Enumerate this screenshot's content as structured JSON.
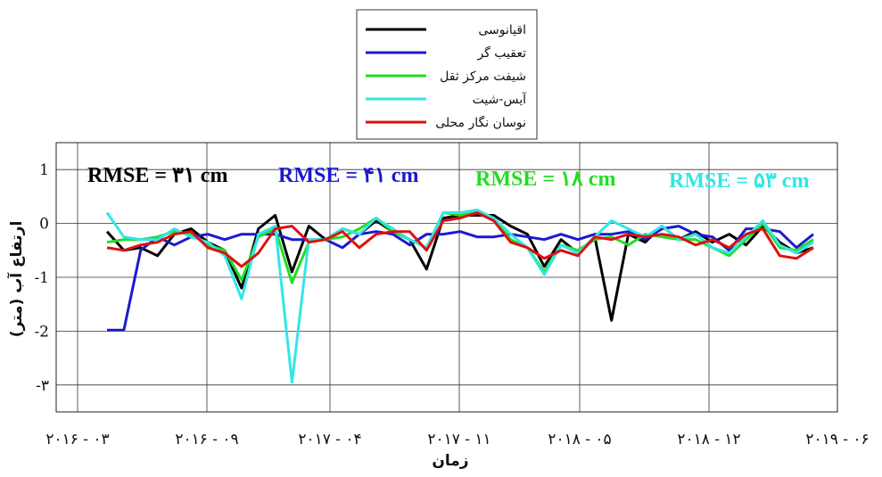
{
  "chart_data": {
    "type": "line",
    "xlabel": "زمان",
    "ylabel": "ارتفاع آب (متر)",
    "x_ticks": [
      "۲۰۱۶ - ۰۳",
      "۲۰۱۶ - ۰۹",
      "۲۰۱۷ - ۰۴",
      "۲۰۱۷ - ۱۱",
      "۲۰۱۸ - ۰۵",
      "۲۰۱۸ - ۱۲",
      "۲۰۱۹ - ۰۶"
    ],
    "y_ticks": [
      {
        "value": 1,
        "label": "1"
      },
      {
        "value": 0,
        "label": "0"
      },
      {
        "value": -1,
        "label": "-1"
      },
      {
        "value": -2,
        "label": "-2"
      },
      {
        "value": -3,
        "label": "-۳"
      }
    ],
    "ylim": [
      -3.5,
      1.5
    ],
    "grid": true,
    "legend_position": "top-center",
    "annotations": [
      {
        "text": "RMSE = ۳۱ cm",
        "color": "#000000",
        "series": 0
      },
      {
        "text": "RMSE = ۴۱ cm",
        "color": "#1a1ad0",
        "series": 1
      },
      {
        "text": "RMSE = ۱۸ cm",
        "color": "#22dd22",
        "series": 2
      },
      {
        "text": "RMSE = ۵۳ cm",
        "color": "#33e6e6",
        "series": 3
      }
    ],
    "series": [
      {
        "name": "اقیانوسی",
        "color": "#000000",
        "values": [
          -0.15,
          -0.5,
          -0.45,
          -0.6,
          -0.2,
          -0.1,
          -0.35,
          -0.5,
          -1.2,
          -0.1,
          0.15,
          -0.9,
          -0.05,
          -0.3,
          -0.1,
          -0.2,
          0.05,
          -0.15,
          -0.3,
          -0.85,
          0.1,
          0.15,
          0.15,
          0.15,
          -0.05,
          -0.2,
          -0.8,
          -0.3,
          -0.55,
          -0.25,
          -1.8,
          -0.2,
          -0.35,
          -0.05,
          -0.3,
          -0.15,
          -0.35,
          -0.2,
          -0.4,
          -0.05,
          -0.35,
          -0.55,
          -0.45
        ]
      },
      {
        "name": "تعقیب گر",
        "color": "#1a1ad0",
        "values": [
          -1.98,
          -1.98,
          -0.5,
          -0.25,
          -0.4,
          -0.25,
          -0.2,
          -0.3,
          -0.2,
          -0.2,
          -0.2,
          -0.3,
          -0.3,
          -0.3,
          -0.45,
          -0.2,
          -0.15,
          -0.2,
          -0.4,
          -0.2,
          -0.2,
          -0.15,
          -0.25,
          -0.25,
          -0.2,
          -0.25,
          -0.3,
          -0.2,
          -0.3,
          -0.2,
          -0.2,
          -0.15,
          -0.3,
          -0.1,
          -0.05,
          -0.2,
          -0.25,
          -0.5,
          -0.1,
          -0.1,
          -0.15,
          -0.45,
          -0.2
        ]
      },
      {
        "name": "شیفت مرکز ثقل",
        "color": "#22dd22",
        "values": [
          -0.35,
          -0.3,
          -0.3,
          -0.25,
          -0.15,
          -0.2,
          -0.4,
          -0.5,
          -1.05,
          -0.25,
          -0.1,
          -1.1,
          -0.35,
          -0.3,
          -0.25,
          -0.1,
          0.1,
          -0.15,
          -0.3,
          -0.45,
          0.2,
          0.15,
          0.2,
          0.1,
          -0.3,
          -0.45,
          -0.9,
          -0.4,
          -0.5,
          -0.3,
          -0.25,
          -0.4,
          -0.2,
          -0.25,
          -0.3,
          -0.3,
          -0.45,
          -0.6,
          -0.3,
          0.0,
          -0.45,
          -0.5,
          -0.3
        ]
      },
      {
        "name": "آیس-شیت",
        "color": "#33e6e6",
        "values": [
          0.2,
          -0.25,
          -0.3,
          -0.3,
          -0.1,
          -0.25,
          -0.35,
          -0.6,
          -1.4,
          -0.2,
          -0.05,
          -2.95,
          -0.3,
          -0.3,
          -0.1,
          -0.2,
          0.1,
          -0.1,
          -0.3,
          -0.45,
          0.2,
          0.2,
          0.25,
          0.1,
          -0.2,
          -0.45,
          -0.95,
          -0.4,
          -0.55,
          -0.25,
          0.05,
          -0.1,
          -0.25,
          -0.05,
          -0.3,
          -0.2,
          -0.45,
          -0.55,
          -0.25,
          0.05,
          -0.4,
          -0.55,
          -0.35
        ]
      },
      {
        "name": "نوسان نگار محلی",
        "color": "#dd1111",
        "values": [
          -0.45,
          -0.5,
          -0.4,
          -0.35,
          -0.2,
          -0.15,
          -0.45,
          -0.55,
          -0.8,
          -0.55,
          -0.1,
          -0.05,
          -0.35,
          -0.3,
          -0.15,
          -0.45,
          -0.2,
          -0.15,
          -0.15,
          -0.5,
          0.05,
          0.1,
          0.2,
          0.05,
          -0.35,
          -0.45,
          -0.65,
          -0.5,
          -0.6,
          -0.25,
          -0.3,
          -0.2,
          -0.25,
          -0.2,
          -0.25,
          -0.4,
          -0.3,
          -0.45,
          -0.2,
          -0.1,
          -0.6,
          -0.65,
          -0.45
        ]
      }
    ]
  }
}
